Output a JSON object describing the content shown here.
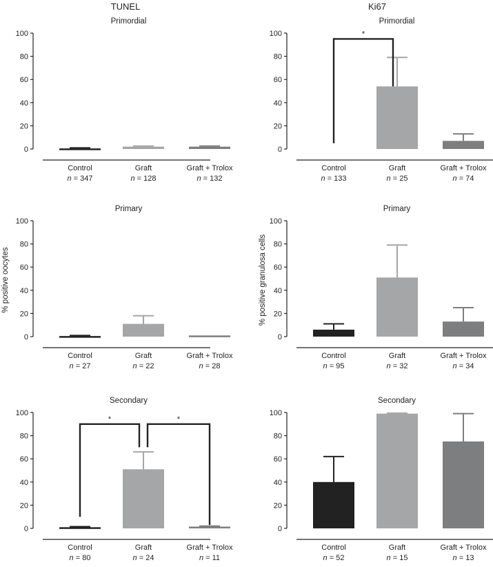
{
  "figure": {
    "column_titles": [
      "TUNEL",
      "Ki67"
    ],
    "row_ylabels": [
      "% positive oocytes",
      "% positive granulosa cells"
    ]
  },
  "chart_data": [
    {
      "type": "bar",
      "column": "TUNEL",
      "title": "Primordial",
      "categories": [
        "Control",
        "Graft",
        "Graft + Trolox"
      ],
      "n_labels": [
        "n = 347",
        "n = 128",
        "n = 132"
      ],
      "values": [
        0.5,
        2,
        2
      ],
      "error_upper": [
        1,
        2.5,
        2.5
      ],
      "ylim": [
        0,
        100
      ],
      "yticks": [
        0,
        20,
        40,
        60,
        80,
        100
      ],
      "ylabel": "",
      "colors": [
        "#222222",
        "#a5a6a8",
        "#7d7e80"
      ],
      "significance": []
    },
    {
      "type": "bar",
      "column": "Ki67",
      "title": "Primordial",
      "categories": [
        "Control",
        "Graft",
        "Graft + Trolox"
      ],
      "n_labels": [
        "n = 133",
        "n = 25",
        "n = 74"
      ],
      "values": [
        0,
        54,
        7
      ],
      "error_upper": [
        0,
        79,
        13
      ],
      "ylim": [
        0,
        100
      ],
      "yticks": [
        0,
        20,
        40,
        60,
        80,
        100
      ],
      "ylabel": "",
      "colors": [
        "#222222",
        "#a5a6a8",
        "#7d7e80"
      ],
      "significance": [
        {
          "from": 0,
          "to": 1,
          "label": "*",
          "level": 95,
          "left_end": 5,
          "right_end": 54
        }
      ]
    },
    {
      "type": "bar",
      "column": "TUNEL",
      "title": "Primary",
      "categories": [
        "Control",
        "Graft",
        "Graft + Trolox"
      ],
      "n_labels": [
        "n = 27",
        "n = 22",
        "n = 28"
      ],
      "values": [
        0.5,
        11,
        1
      ],
      "error_upper": [
        1,
        18,
        1
      ],
      "ylim": [
        0,
        100
      ],
      "yticks": [
        0,
        20,
        40,
        60,
        80,
        100
      ],
      "ylabel": "% positive oocytes",
      "colors": [
        "#222222",
        "#a5a6a8",
        "#7d7e80"
      ],
      "significance": []
    },
    {
      "type": "bar",
      "column": "Ki67",
      "title": "Primary",
      "categories": [
        "Control",
        "Graft",
        "Graft + Trolox"
      ],
      "n_labels": [
        "n = 95",
        "n = 32",
        "n = 34"
      ],
      "values": [
        6,
        51,
        13
      ],
      "error_upper": [
        11,
        79,
        25
      ],
      "ylim": [
        0,
        100
      ],
      "yticks": [
        0,
        20,
        40,
        60,
        80,
        100
      ],
      "ylabel": "% positive granulosa cells",
      "colors": [
        "#222222",
        "#a5a6a8",
        "#7d7e80"
      ],
      "significance": []
    },
    {
      "type": "bar",
      "column": "TUNEL",
      "title": "Secondary",
      "categories": [
        "Control",
        "Graft",
        "Graft + Trolox"
      ],
      "n_labels": [
        "n = 80",
        "n = 24",
        "n = 11"
      ],
      "values": [
        1,
        51,
        1.5
      ],
      "error_upper": [
        1.5,
        66,
        2
      ],
      "ylim": [
        0,
        100
      ],
      "yticks": [
        0,
        20,
        40,
        60,
        80,
        100
      ],
      "ylabel": "",
      "colors": [
        "#222222",
        "#a5a6a8",
        "#7d7e80"
      ],
      "significance": [
        {
          "from": 0,
          "to": 1,
          "label": "*",
          "level": 90,
          "left_end": 10,
          "right_end": 70
        },
        {
          "from": 1,
          "to": 2,
          "label": "*",
          "level": 90,
          "left_end": 70,
          "right_end": 3
        }
      ]
    },
    {
      "type": "bar",
      "column": "Ki67",
      "title": "Secondary",
      "categories": [
        "Control",
        "Graft",
        "Graft + Trolox"
      ],
      "n_labels": [
        "n = 52",
        "n = 15",
        "n = 13"
      ],
      "values": [
        40,
        99,
        75
      ],
      "error_upper": [
        62,
        99.5,
        99
      ],
      "ylim": [
        0,
        100
      ],
      "yticks": [
        0,
        20,
        40,
        60,
        80,
        100
      ],
      "ylabel": "",
      "colors": [
        "#222222",
        "#a5a6a8",
        "#7d7e80"
      ],
      "significance": []
    }
  ]
}
